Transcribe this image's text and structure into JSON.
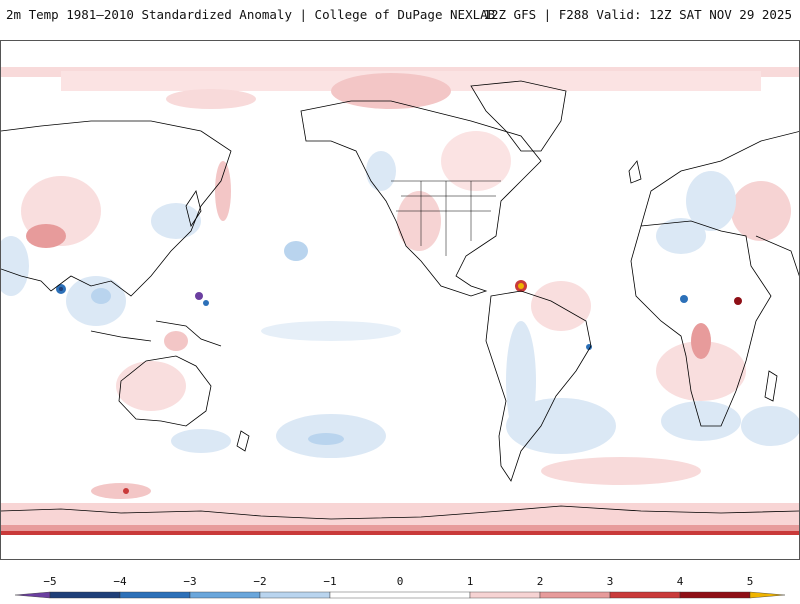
{
  "header": {
    "title_left": "2m Temp 1981–2010 Standardized Anomaly | College of DuPage NEXLAB",
    "title_right": "12Z GFS | F288 Valid: 12Z SAT NOV 29 2025"
  },
  "map": {
    "projection": "equirectangular",
    "field": "2m temperature standardized anomaly",
    "background": "#ffffff",
    "coastline_color": "#000000"
  },
  "colorbar": {
    "ticks": [
      "−5",
      "−4",
      "−3",
      "−2",
      "−1",
      "0",
      "1",
      "2",
      "3",
      "4",
      "5"
    ],
    "segments": [
      {
        "from": -5.5,
        "to": -5,
        "color": "#6b3fa0"
      },
      {
        "from": -5,
        "to": -4,
        "color": "#1f3f78"
      },
      {
        "from": -4,
        "to": -3,
        "color": "#2c70b8"
      },
      {
        "from": -3,
        "to": -2,
        "color": "#6aa6db"
      },
      {
        "from": -2,
        "to": -1,
        "color": "#b9d4ee"
      },
      {
        "from": -1,
        "to": 1,
        "color": "#ffffff"
      },
      {
        "from": 1,
        "to": 2,
        "color": "#f6d3d3"
      },
      {
        "from": 2,
        "to": 3,
        "color": "#e79b9b"
      },
      {
        "from": 3,
        "to": 4,
        "color": "#c93a3a"
      },
      {
        "from": 4,
        "to": 5,
        "color": "#8e0f16"
      },
      {
        "from": 5,
        "to": 5.5,
        "color": "#f0b400"
      }
    ]
  }
}
